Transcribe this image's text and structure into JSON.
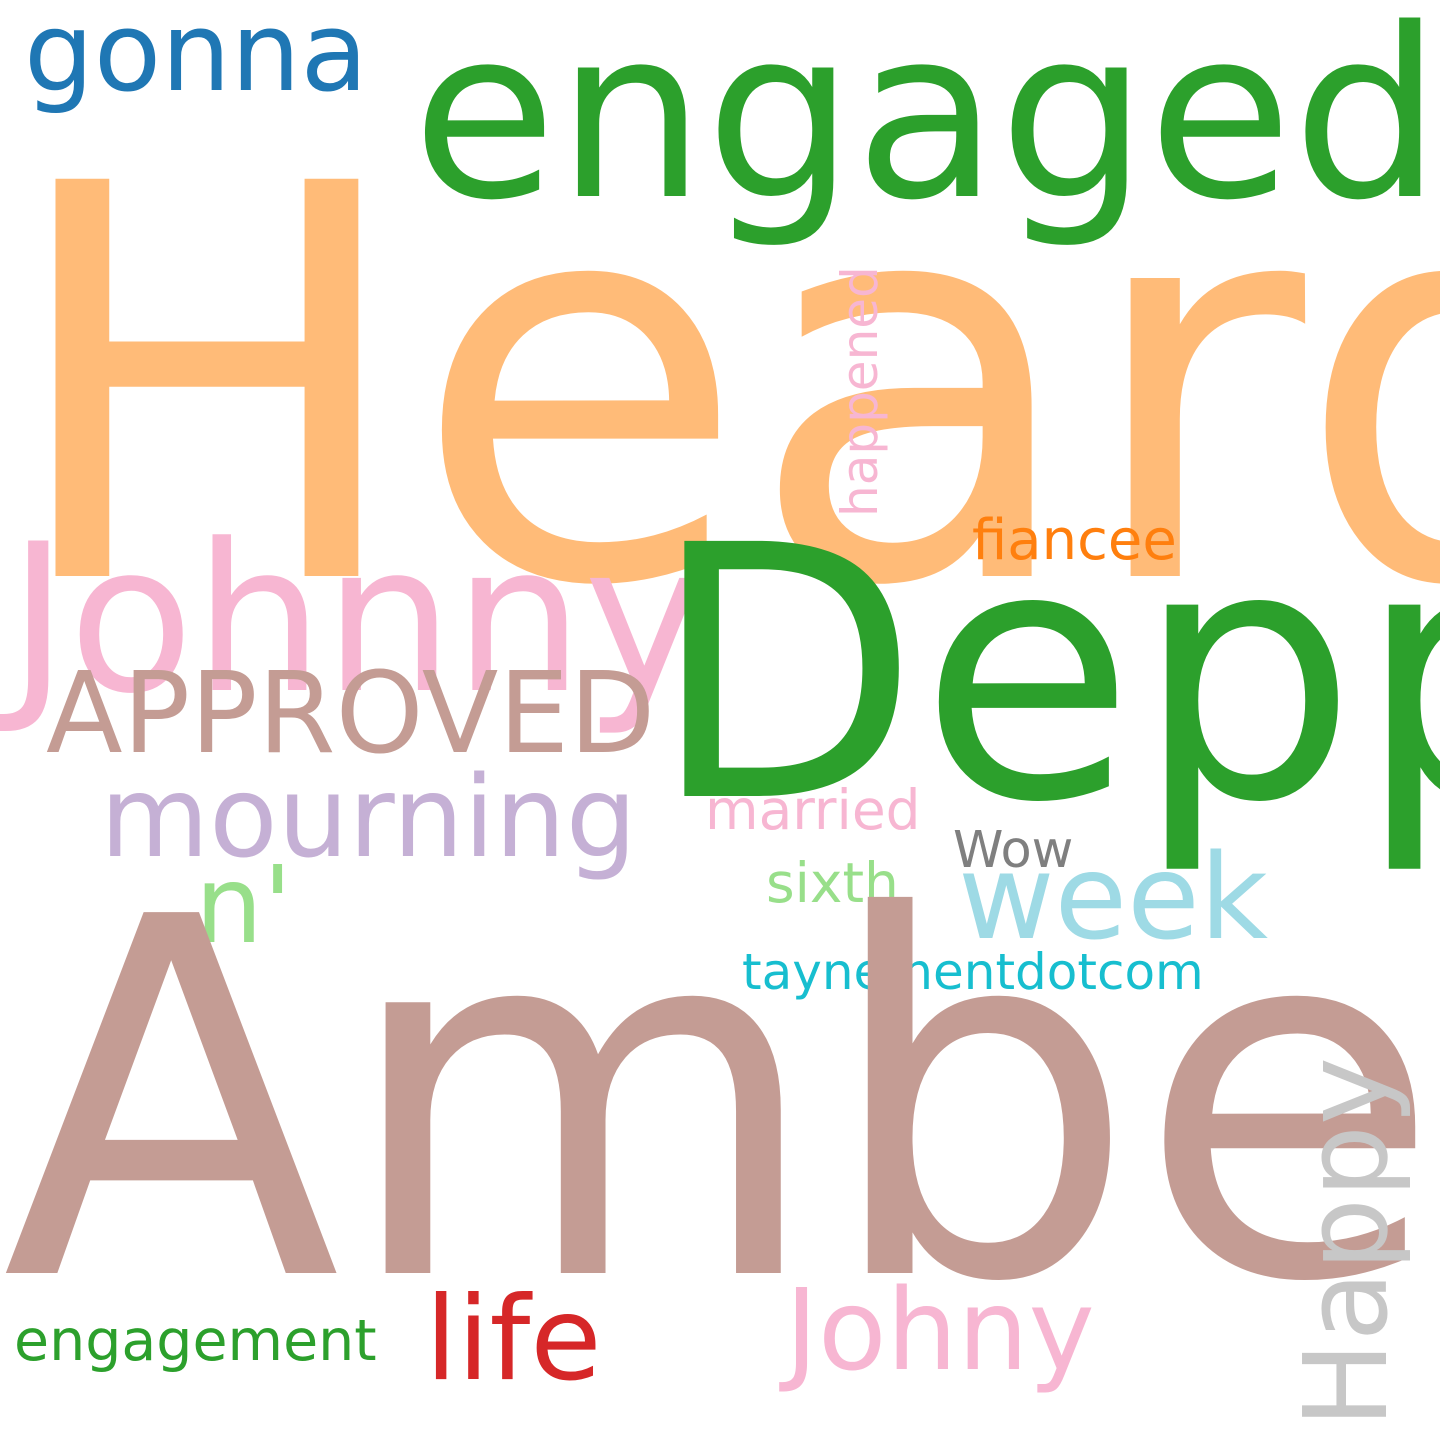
{
  "cloud": {
    "words": {
      "heard": {
        "text": "Heard",
        "color": "#ffbb78"
      },
      "amber": {
        "text": "Amber",
        "color": "#c49c94"
      },
      "depp": {
        "text": "Depp",
        "color": "#2ca02c"
      },
      "engaged": {
        "text": "engaged",
        "color": "#2ca02c"
      },
      "johnny": {
        "text": "Johnny",
        "color": "#f7b6d2"
      },
      "happy": {
        "text": "Happy",
        "color": "#c7c7c7",
        "orientation": "vertical"
      },
      "week": {
        "text": "week",
        "color": "#9edae5"
      },
      "mourning": {
        "text": "mourning",
        "color": "#c5b0d5"
      },
      "johny": {
        "text": "Johny",
        "color": "#f7b6d2"
      },
      "life": {
        "text": "life",
        "color": "#d62728"
      },
      "approved": {
        "text": "APPROVED",
        "color": "#c49c94"
      },
      "gonna": {
        "text": "gonna",
        "color": "#1f77b4"
      },
      "nprime": {
        "text": "n'",
        "color": "#98df8a"
      },
      "happened": {
        "text": "happened",
        "color": "#f7b6d2",
        "orientation": "vertical"
      },
      "taynement": {
        "text": "taynementdotcom",
        "color": "#17becf"
      },
      "engagement": {
        "text": "engagement",
        "color": "#2ca02c"
      },
      "fiancee": {
        "text": "fiancee",
        "color": "#ff7f0e"
      },
      "married": {
        "text": "married",
        "color": "#f7b6d2"
      },
      "sixth": {
        "text": "sixth",
        "color": "#98df8a"
      },
      "wow": {
        "text": "Wow",
        "color": "#7f7f7f"
      }
    }
  }
}
